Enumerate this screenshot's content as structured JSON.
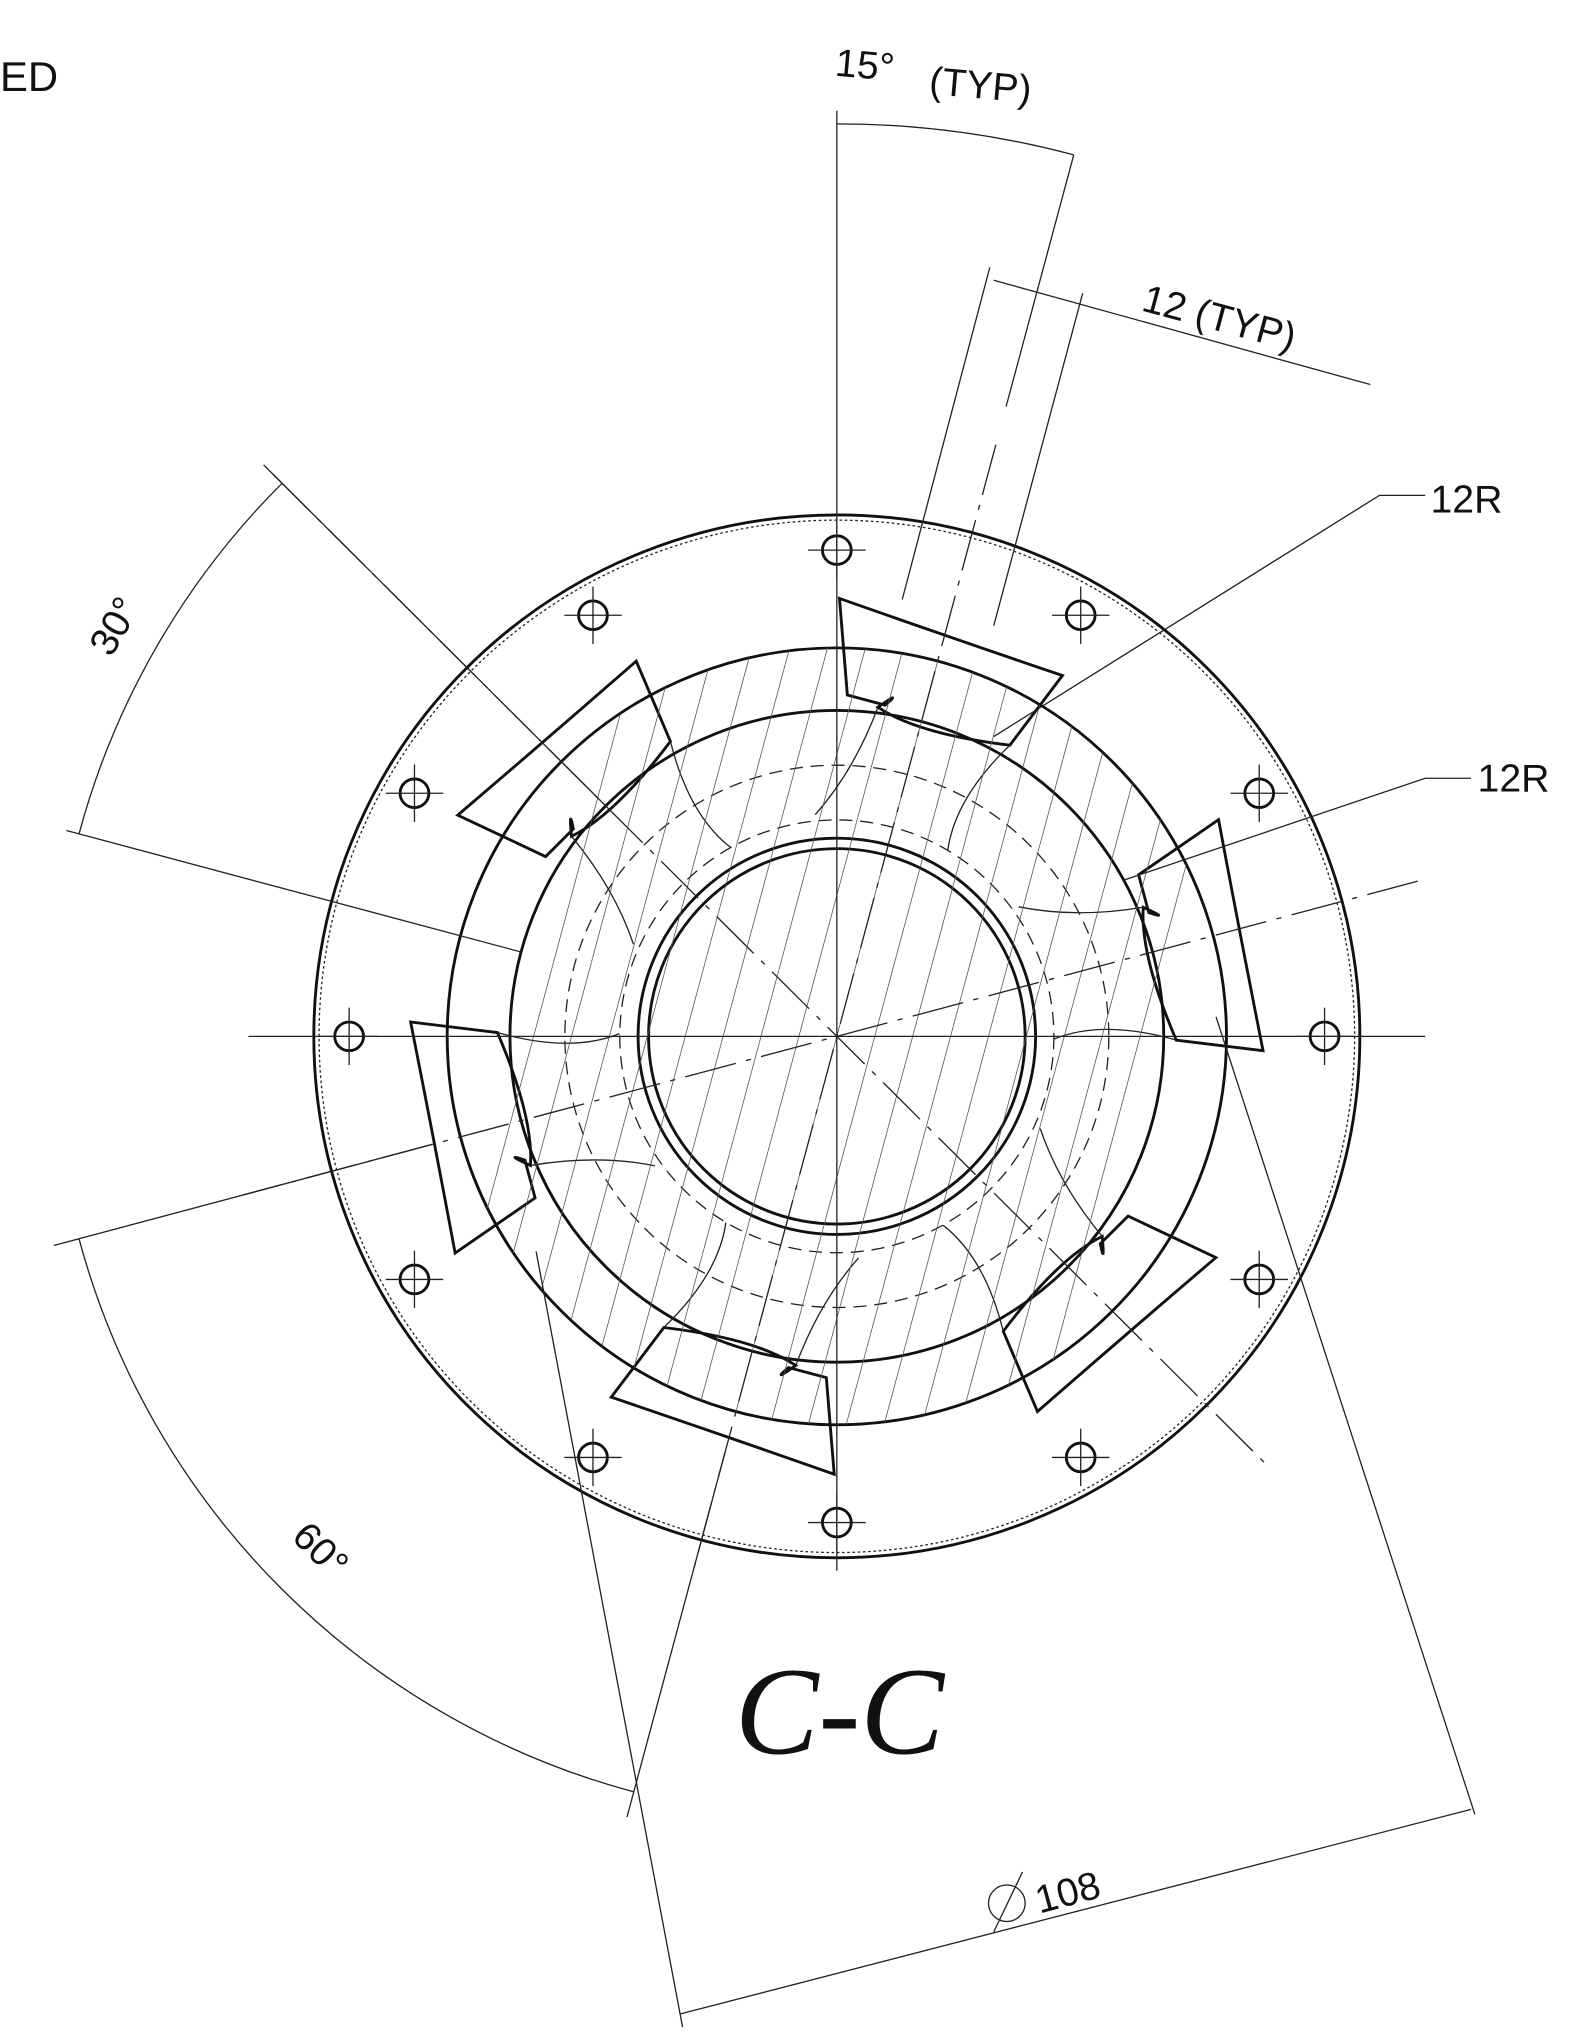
{
  "header": "ED",
  "dimensions": {
    "angle_top": "15°",
    "angle_top_note": "(TYP)",
    "width": "12 (TYP)",
    "radius_1": "12R",
    "radius_2": "12R",
    "angle_left": "30°",
    "angle_bottom": "60°",
    "diameter": "108"
  },
  "section_label": "C-C"
}
